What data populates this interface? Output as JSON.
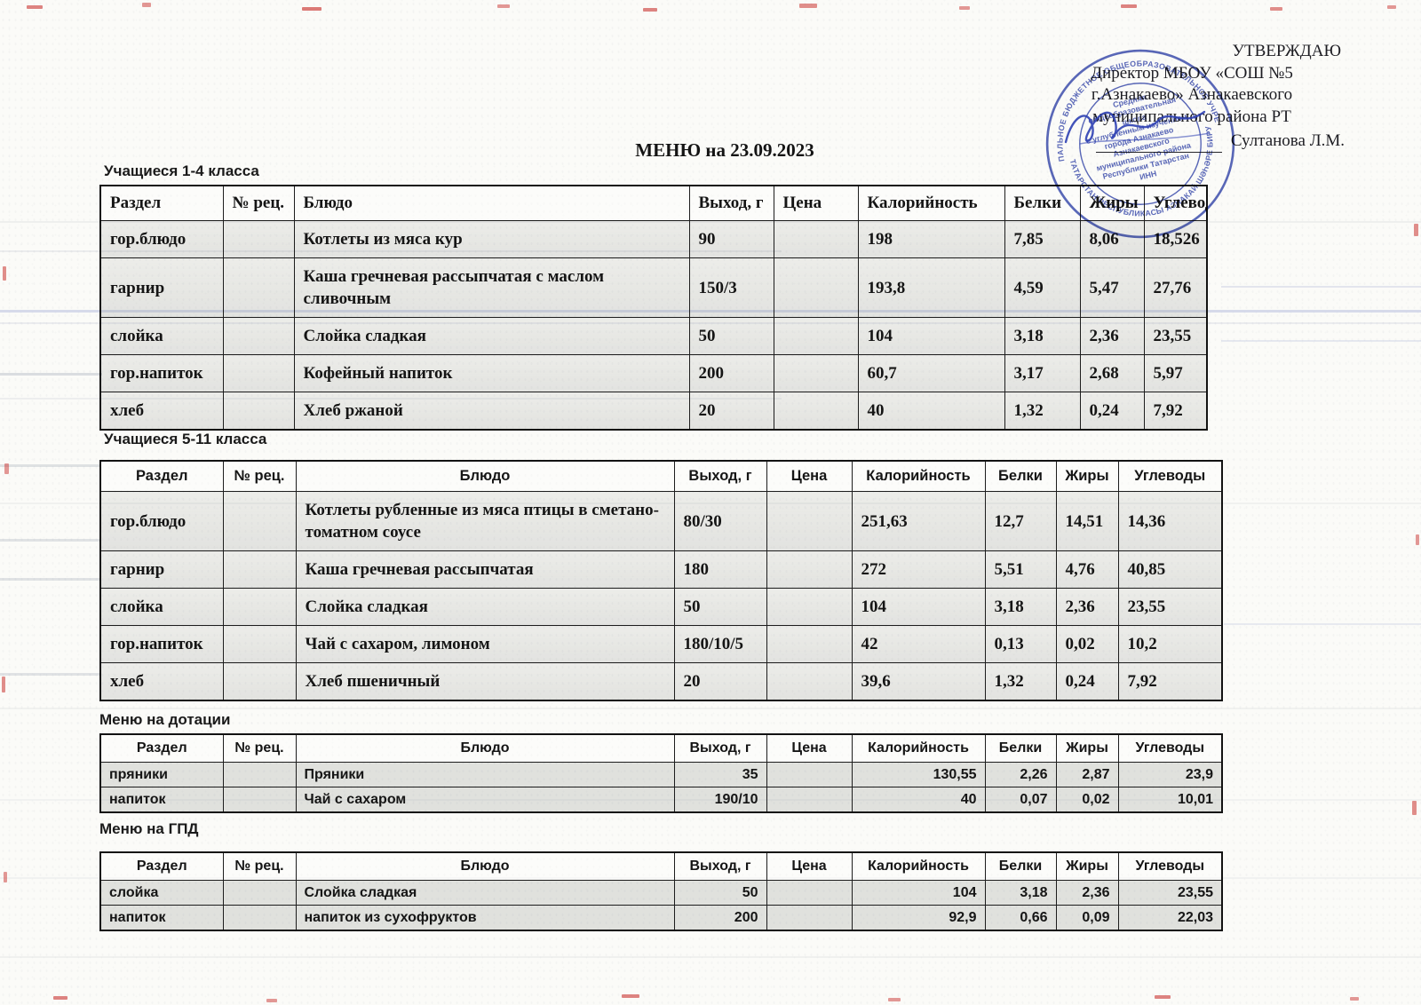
{
  "page_title": "МЕНЮ на 23.09.2023",
  "approval": {
    "approve_word": "УТВЕРЖДАЮ",
    "lines": [
      "Директор  МБОУ «СОШ №5",
      "г.Азнакаево» Азнакаевского",
      "муниципального района РТ"
    ],
    "signatory": "Султанова Л.М."
  },
  "stamp": {
    "accent_color": "#3d4eb0",
    "ring_top": "МУНИЦИПАЛЬНОЕ БЮДЖЕТНОЕ ОБЩЕОБРАЗОВАТЕЛЬНОЕ УЧРЕЖДЕНИЕ",
    "ring_bottom": "ТАТАРСТАН РЕСПУБЛИКАСЫ АЗНАКАЙ ШӘҺӘРЕ БИРУ",
    "inner_lines": [
      "Средняя",
      "общеобразовательная",
      "школа",
      "с углубленным изучением",
      "города Азнакаево",
      "Азнакаевского",
      "муниципального района",
      "Республики Татарстан",
      "ИНН"
    ]
  },
  "columns": [
    "Раздел",
    "№ рец.",
    "Блюдо",
    "Выход, г",
    "Цена",
    "Калорийность",
    "Белки",
    "Жиры",
    "Углеводы"
  ],
  "tables": [
    {
      "section": "Учащиеся 1-4 класса",
      "rows": [
        [
          "гор.блюдо",
          "",
          "Котлеты из мяса кур",
          "90",
          "",
          "198",
          "7,85",
          "8,06",
          "18,526"
        ],
        [
          "гарнир",
          "",
          "Каша гречневая рассыпчатая с маслом сливочным",
          "150/3",
          "",
          "193,8",
          "4,59",
          "5,47",
          "27,76"
        ],
        [
          "слойка",
          "",
          "Слойка сладкая",
          "50",
          "",
          "104",
          "3,18",
          "2,36",
          "23,55"
        ],
        [
          "гор.напиток",
          "",
          "Кофейный напиток",
          "200",
          "",
          "60,7",
          "3,17",
          "2,68",
          "5,97"
        ],
        [
          "хлеб",
          "",
          "Хлеб ржаной",
          "20",
          "",
          "40",
          "1,32",
          "0,24",
          "7,92"
        ]
      ]
    },
    {
      "section": "Учащиеся 5-11 класса",
      "rows": [
        [
          "гор.блюдо",
          "",
          "Котлеты  рубленные из мяса птицы в сметано-томатном соусе",
          "80/30",
          "",
          "251,63",
          "12,7",
          "14,51",
          "14,36"
        ],
        [
          "гарнир",
          "",
          "Каша гречневая рассыпчатая",
          "180",
          "",
          "272",
          "5,51",
          "4,76",
          "40,85"
        ],
        [
          "слойка",
          "",
          "Слойка сладкая",
          "50",
          "",
          "104",
          "3,18",
          "2,36",
          "23,55"
        ],
        [
          "гор.напиток",
          "",
          "Чай с сахаром, лимоном",
          "180/10/5",
          "",
          "42",
          "0,13",
          "0,02",
          "10,2"
        ],
        [
          "хлеб",
          "",
          "Хлеб пшеничный",
          "20",
          "",
          "39,6",
          "1,32",
          "0,24",
          "7,92"
        ]
      ]
    },
    {
      "section": "Меню на дотации",
      "rows": [
        [
          "пряники",
          "",
          "Пряники",
          "35",
          "",
          "130,55",
          "2,26",
          "2,87",
          "23,9"
        ],
        [
          "напиток",
          "",
          "Чай с сахаром",
          "190/10",
          "",
          "40",
          "0,07",
          "0,02",
          "10,01"
        ]
      ]
    },
    {
      "section": "Меню на ГПД",
      "rows": [
        [
          "слойка",
          "",
          "Слойка сладкая",
          "50",
          "",
          "104",
          "3,18",
          "2,36",
          "23,55"
        ],
        [
          "напиток",
          "",
          "напиток из сухофруктов",
          "200",
          "",
          "92,9",
          "0,66",
          "0,09",
          "22,03"
        ]
      ]
    }
  ]
}
